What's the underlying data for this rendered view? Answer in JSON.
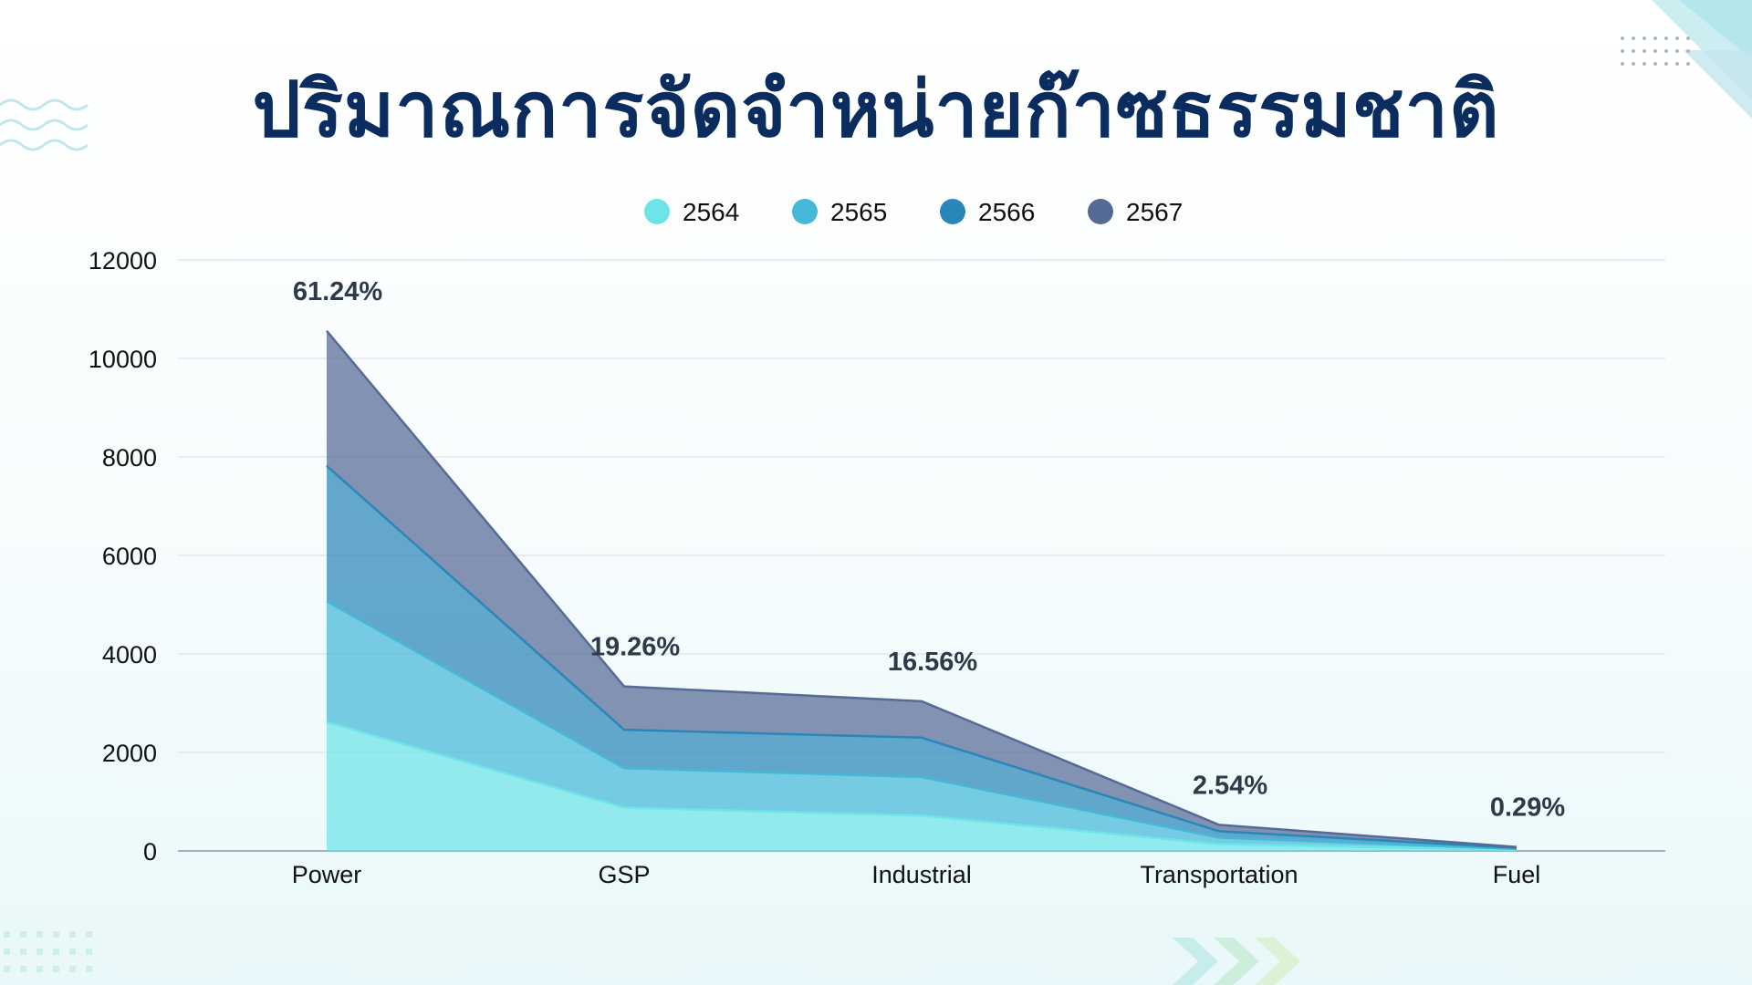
{
  "title": "ปริมาณการจัดจำหน่ายก๊าซธรรมชาติ",
  "chart_data": {
    "type": "area",
    "stacked": true,
    "categories": [
      "Power",
      "GSP",
      "Industrial",
      "Transportation",
      "Fuel"
    ],
    "series": [
      {
        "name": "2564",
        "values": [
          2620,
          880,
          720,
          140,
          20
        ],
        "color": "#6ee3e8"
      },
      {
        "name": "2565",
        "values": [
          2450,
          800,
          780,
          130,
          20
        ],
        "color": "#45b8d8"
      },
      {
        "name": "2566",
        "values": [
          2750,
          780,
          800,
          130,
          20
        ],
        "color": "#2a86b8"
      },
      {
        "name": "2567",
        "values": [
          2740,
          880,
          740,
          130,
          20
        ],
        "color": "#566a96"
      }
    ],
    "data_labels": [
      "61.24%",
      "19.26%",
      "16.56%",
      "2.54%",
      "0.29%"
    ],
    "ylim": [
      0,
      12000
    ],
    "yticks": [
      0,
      2000,
      4000,
      6000,
      8000,
      10000,
      12000
    ],
    "grid": true,
    "legend_position": "top-center",
    "xlabel": "",
    "ylabel": ""
  }
}
